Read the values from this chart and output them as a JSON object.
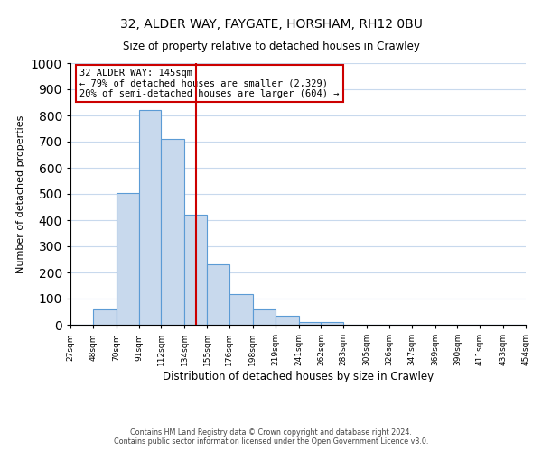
{
  "title": "32, ALDER WAY, FAYGATE, HORSHAM, RH12 0BU",
  "subtitle": "Size of property relative to detached houses in Crawley",
  "xlabel": "Distribution of detached houses by size in Crawley",
  "ylabel": "Number of detached properties",
  "bar_edges": [
    27,
    48,
    70,
    91,
    112,
    134,
    155,
    176,
    198,
    219,
    241,
    262,
    283,
    305,
    326,
    347,
    369,
    390,
    411,
    433,
    454
  ],
  "bar_heights": [
    0,
    57,
    505,
    820,
    710,
    420,
    232,
    118,
    57,
    35,
    12,
    12,
    0,
    0,
    0,
    0,
    0,
    0,
    0,
    0
  ],
  "bar_color": "#c8d9ed",
  "bar_edge_color": "#5b9bd5",
  "vline_x": 145,
  "vline_color": "#cc0000",
  "annotation_title": "32 ALDER WAY: 145sqm",
  "annotation_line1": "← 79% of detached houses are smaller (2,329)",
  "annotation_line2": "20% of semi-detached houses are larger (604) →",
  "box_edge_color": "#cc0000",
  "ylim": [
    0,
    1000
  ],
  "yticks": [
    0,
    100,
    200,
    300,
    400,
    500,
    600,
    700,
    800,
    900,
    1000
  ],
  "tick_labels": [
    "27sqm",
    "48sqm",
    "70sqm",
    "91sqm",
    "112sqm",
    "134sqm",
    "155sqm",
    "176sqm",
    "198sqm",
    "219sqm",
    "241sqm",
    "262sqm",
    "283sqm",
    "305sqm",
    "326sqm",
    "347sqm",
    "369sqm",
    "390sqm",
    "411sqm",
    "433sqm",
    "454sqm"
  ],
  "footer1": "Contains HM Land Registry data © Crown copyright and database right 2024.",
  "footer2": "Contains public sector information licensed under the Open Government Licence v3.0.",
  "bg_color": "#ffffff",
  "grid_color": "#c8d9ed"
}
